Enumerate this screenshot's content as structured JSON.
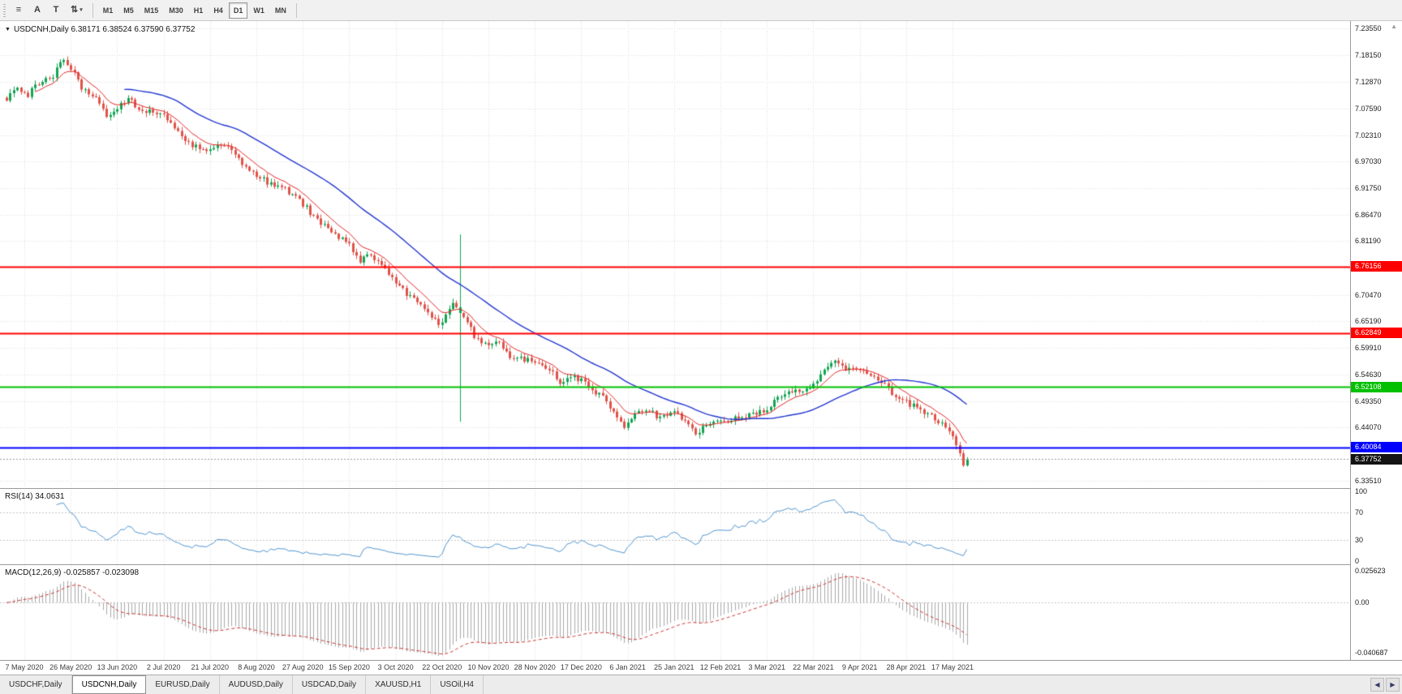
{
  "toolbar": {
    "icons": [
      {
        "name": "chart-list-icon",
        "glyph": "≡"
      },
      {
        "name": "font-tool-icon",
        "glyph": "A"
      },
      {
        "name": "text-tool-icon",
        "glyph": "T"
      },
      {
        "name": "arrange-tool-icon",
        "glyph": "⇅",
        "caret": "▾"
      }
    ],
    "timeframes": [
      "M1",
      "M5",
      "M15",
      "M30",
      "H1",
      "H4",
      "D1",
      "W1",
      "MN"
    ],
    "active_timeframe": "D1"
  },
  "price_scale": {
    "ticks": [
      "7.23550",
      "7.18150",
      "7.12870",
      "7.07590",
      "7.02310",
      "6.97030",
      "6.91750",
      "6.86470",
      "6.81190",
      "6.70470",
      "6.65190",
      "6.59910",
      "6.54630",
      "6.49350",
      "6.44070",
      "6.33510"
    ],
    "badges": [
      {
        "label": "6.76156",
        "value": 6.76156,
        "color": "#ff0000",
        "name": "resistance-level-1"
      },
      {
        "label": "6.62849",
        "value": 6.62849,
        "color": "#ff0000",
        "name": "resistance-level-2"
      },
      {
        "label": "6.52108",
        "value": 6.52108,
        "color": "#00c000",
        "name": "support-level-1"
      },
      {
        "label": "6.40084",
        "value": 6.40084,
        "color": "#0000ff",
        "name": "support-level-2"
      },
      {
        "label": "6.37752",
        "value": 6.37752,
        "color": "#141414",
        "name": "last-price"
      }
    ],
    "scroll_arrow": "▲"
  },
  "chart_data": {
    "type": "candlestick",
    "title": "USDCNH,Daily",
    "collapse_icon": "▼",
    "symbol_ohlc_line": "USDCNH,Daily  6.38171 6.38524 6.37590 6.37752",
    "open": "6.38171",
    "high": "6.38524",
    "low": "6.37590",
    "close": "6.37752",
    "x_tick_labels": [
      "7 May 2020",
      "26 May 2020",
      "13 Jun 2020",
      "2 Jul 2020",
      "21 Jul 2020",
      "8 Aug 2020",
      "27 Aug 2020",
      "15 Sep 2020",
      "3 Oct 2020",
      "22 Oct 2020",
      "10 Nov 2020",
      "28 Nov 2020",
      "17 Dec 2020",
      "6 Jan 2021",
      "25 Jan 2021",
      "12 Feb 2021",
      "3 Mar 2021",
      "22 Mar 2021",
      "9 Apr 2021",
      "28 Apr 2021",
      "17 May 2021"
    ],
    "num_candles": 270,
    "first_tick_candle": 5,
    "candles_per_tick": 13,
    "noise": 0.011,
    "price_axis": {
      "min": 6.32,
      "max": 7.25
    },
    "candle_colors": {
      "up": "#12a452",
      "down": "#e0524a"
    },
    "moving_averages": [
      {
        "name": "ma-fast",
        "type": "ema",
        "period": 9,
        "color": "#e02424"
      },
      {
        "name": "ma-slow",
        "type": "sma",
        "period": 34,
        "color": "#2438d0"
      }
    ],
    "hlines": [
      {
        "value": 6.76156,
        "color": "#ff0000",
        "width": 2
      },
      {
        "value": 6.62849,
        "color": "#ff0000",
        "width": 2
      },
      {
        "value": 6.52108,
        "color": "#00c000",
        "width": 2
      },
      {
        "value": 6.40084,
        "color": "#0000ff",
        "width": 2
      },
      {
        "value": 6.37752,
        "color": "#9a9a9a",
        "width": 1,
        "dash": [
          2,
          2
        ],
        "last_price": true
      }
    ],
    "close_anchors": [
      [
        0,
        7.095
      ],
      [
        3,
        7.116
      ],
      [
        6,
        7.104
      ],
      [
        9,
        7.128
      ],
      [
        13,
        7.142
      ],
      [
        16,
        7.176
      ],
      [
        18,
        7.158
      ],
      [
        21,
        7.118
      ],
      [
        25,
        7.098
      ],
      [
        28,
        7.064
      ],
      [
        31,
        7.076
      ],
      [
        34,
        7.094
      ],
      [
        38,
        7.073
      ],
      [
        44,
        7.064
      ],
      [
        48,
        7.028
      ],
      [
        52,
        7.004
      ],
      [
        57,
        6.994
      ],
      [
        61,
        7.004
      ],
      [
        66,
        6.968
      ],
      [
        70,
        6.944
      ],
      [
        74,
        6.925
      ],
      [
        78,
        6.915
      ],
      [
        83,
        6.886
      ],
      [
        87,
        6.852
      ],
      [
        92,
        6.824
      ],
      [
        96,
        6.804
      ],
      [
        99,
        6.772
      ],
      [
        102,
        6.786
      ],
      [
        106,
        6.756
      ],
      [
        109,
        6.728
      ],
      [
        113,
        6.7
      ],
      [
        116,
        6.686
      ],
      [
        119,
        6.658
      ],
      [
        122,
        6.646
      ],
      [
        125,
        6.69
      ],
      [
        128,
        6.664
      ],
      [
        131,
        6.624
      ],
      [
        135,
        6.6
      ],
      [
        138,
        6.614
      ],
      [
        141,
        6.582
      ],
      [
        145,
        6.576
      ],
      [
        148,
        6.57
      ],
      [
        152,
        6.556
      ],
      [
        155,
        6.53
      ],
      [
        158,
        6.54
      ],
      [
        161,
        6.536
      ],
      [
        164,
        6.516
      ],
      [
        167,
        6.5
      ],
      [
        171,
        6.46
      ],
      [
        173,
        6.44
      ],
      [
        176,
        6.464
      ],
      [
        179,
        6.478
      ],
      [
        183,
        6.46
      ],
      [
        187,
        6.474
      ],
      [
        190,
        6.454
      ],
      [
        193,
        6.43
      ],
      [
        196,
        6.444
      ],
      [
        200,
        6.454
      ],
      [
        204,
        6.458
      ],
      [
        208,
        6.464
      ],
      [
        213,
        6.478
      ],
      [
        216,
        6.498
      ],
      [
        220,
        6.514
      ],
      [
        223,
        6.508
      ],
      [
        226,
        6.524
      ],
      [
        229,
        6.552
      ],
      [
        232,
        6.572
      ],
      [
        235,
        6.56
      ],
      [
        239,
        6.555
      ],
      [
        242,
        6.545
      ],
      [
        245,
        6.534
      ],
      [
        248,
        6.51
      ],
      [
        252,
        6.49
      ],
      [
        255,
        6.48
      ],
      [
        258,
        6.468
      ],
      [
        260,
        6.458
      ],
      [
        262,
        6.448
      ],
      [
        264,
        6.434
      ],
      [
        265,
        6.421
      ],
      [
        266,
        6.404
      ],
      [
        267,
        6.386
      ],
      [
        268,
        6.365
      ],
      [
        269,
        6.3775
      ]
    ],
    "spike": {
      "index": 127,
      "high": 6.825,
      "low": 6.452
    },
    "rsi": {
      "label": "RSI(14) 34.0631",
      "period": 14,
      "current": "34.0631",
      "axis_ticks": [
        "100",
        "70",
        "30",
        "0"
      ],
      "dashed_levels": [
        70,
        30
      ],
      "line_color": "#4f93ce"
    },
    "macd": {
      "label": "MACD(12,26,9) -0.025857 -0.023098",
      "fast": 12,
      "slow": 26,
      "signal": 9,
      "main_value": "-0.025857",
      "signal_value": "-0.023098",
      "axis_ticks": [
        "0.025623",
        "0.00",
        "-0.040687"
      ],
      "range": [
        -0.0465,
        0.031
      ],
      "hist_color": "#a9a9a9",
      "signal_color": "#cc3333"
    }
  },
  "tabs": {
    "items": [
      "USDCHF,Daily",
      "USDCNH,Daily",
      "EURUSD,Daily",
      "AUDUSD,Daily",
      "USDCAD,Daily",
      "XAUUSD,H1",
      "USOil,H4"
    ],
    "active": "USDCNH,Daily",
    "scroll_left": "◀",
    "scroll_right": "▶"
  }
}
